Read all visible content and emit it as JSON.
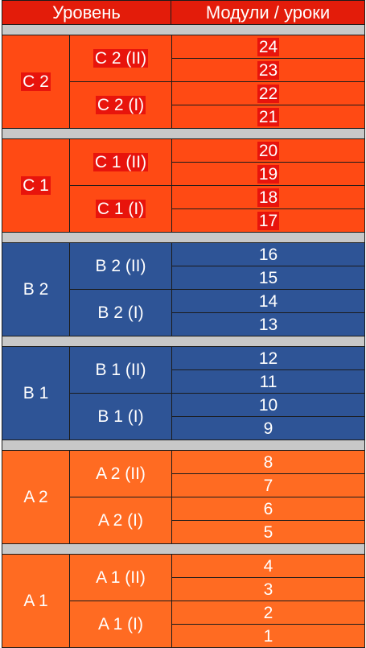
{
  "header": {
    "level_label": "Уровень",
    "modules_label": "Модули / уроки",
    "bg": "#e31c0a",
    "text_highlight": "#e31c0a"
  },
  "groups": [
    {
      "level": "C 2",
      "bg": "#ff4a14",
      "text_highlight": "#e8140c",
      "subs": [
        {
          "label": "C 2 (II)",
          "lessons": [
            "24",
            "23"
          ]
        },
        {
          "label": "C 2 (I)",
          "lessons": [
            "22",
            "21"
          ]
        }
      ]
    },
    {
      "level": "C 1",
      "bg": "#ff4a14",
      "text_highlight": "#e8140c",
      "subs": [
        {
          "label": "C 1 (II)",
          "lessons": [
            "20",
            "19"
          ]
        },
        {
          "label": "C 1 (I)",
          "lessons": [
            "18",
            "17"
          ]
        }
      ]
    },
    {
      "level": "B 2",
      "bg": "#2e5496",
      "text_highlight": "",
      "subs": [
        {
          "label": "B 2 (II)",
          "lessons": [
            "16",
            "15"
          ]
        },
        {
          "label": "B 2 (I)",
          "lessons": [
            "14",
            "13"
          ]
        }
      ]
    },
    {
      "level": "B 1",
      "bg": "#2e5496",
      "text_highlight": "",
      "subs": [
        {
          "label": "B 1 (II)",
          "lessons": [
            "12",
            "11"
          ]
        },
        {
          "label": "B 1 (I)",
          "lessons": [
            "10",
            "9"
          ]
        }
      ]
    },
    {
      "level": "A 2",
      "bg": "#ff6b22",
      "text_highlight": "",
      "subs": [
        {
          "label": "A 2 (II)",
          "lessons": [
            "8",
            "7"
          ]
        },
        {
          "label": "A 2 (I)",
          "lessons": [
            "6",
            "5"
          ]
        }
      ]
    },
    {
      "level": "A 1",
      "bg": "#ff6b22",
      "text_highlight": "",
      "subs": [
        {
          "label": "A 1 (II)",
          "lessons": [
            "4",
            "3"
          ]
        },
        {
          "label": "A 1 (I)",
          "lessons": [
            "2",
            "1"
          ]
        }
      ]
    }
  ]
}
